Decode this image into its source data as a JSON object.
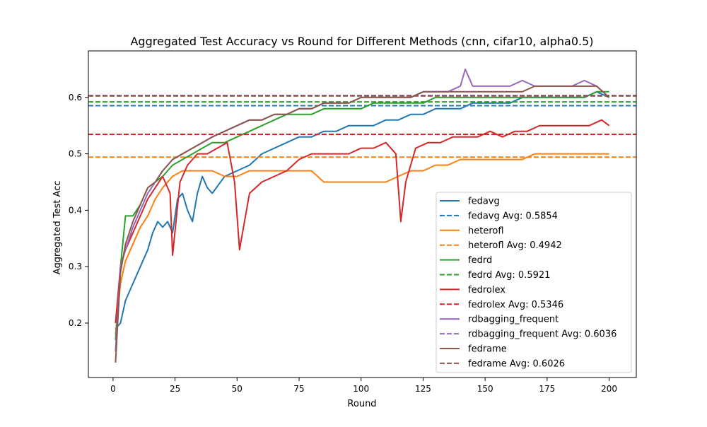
{
  "chart_data": {
    "type": "line",
    "title": "Aggregated Test Accuracy vs Round for Different Methods (cnn, cifar10, alpha0.5)",
    "xlabel": "Round",
    "ylabel": "Aggregated Test Acc",
    "xlim": [
      -9.95,
      210.95
    ],
    "ylim": [
      0.1035,
      0.6825
    ],
    "xticks": [
      0,
      25,
      50,
      75,
      100,
      125,
      150,
      175,
      200
    ],
    "yticks": [
      0.2,
      0.3,
      0.4,
      0.5,
      0.6
    ],
    "xtick_labels": [
      "0",
      "25",
      "50",
      "75",
      "100",
      "125",
      "150",
      "175",
      "200"
    ],
    "ytick_labels": [
      "0.2",
      "0.3",
      "0.4",
      "0.5",
      "0.6"
    ],
    "grid": false,
    "legend_position": "lower right",
    "series": [
      {
        "name": "fedavg",
        "color": "#1f77b4",
        "x": [
          1,
          3,
          5,
          8,
          11,
          14,
          16,
          18,
          20,
          22,
          24,
          26,
          28,
          30,
          32,
          34,
          36,
          38,
          40,
          45,
          50,
          55,
          60,
          65,
          70,
          75,
          80,
          85,
          90,
          95,
          100,
          105,
          110,
          115,
          120,
          125,
          130,
          135,
          140,
          145,
          150,
          155,
          160,
          165,
          170,
          175,
          180,
          185,
          190,
          195,
          200
        ],
        "y": [
          0.19,
          0.2,
          0.24,
          0.27,
          0.3,
          0.33,
          0.36,
          0.38,
          0.37,
          0.38,
          0.36,
          0.42,
          0.43,
          0.4,
          0.38,
          0.43,
          0.46,
          0.44,
          0.43,
          0.46,
          0.47,
          0.48,
          0.5,
          0.51,
          0.52,
          0.53,
          0.53,
          0.54,
          0.54,
          0.55,
          0.55,
          0.55,
          0.56,
          0.56,
          0.57,
          0.57,
          0.58,
          0.58,
          0.58,
          0.59,
          0.59,
          0.59,
          0.59,
          0.6,
          0.6,
          0.6,
          0.6,
          0.6,
          0.6,
          0.61,
          0.6
        ]
      },
      {
        "name": "fedavg Avg: 0.5854",
        "color": "#1f77b4",
        "dashed": true,
        "x": [
          -9.95,
          210.95
        ],
        "y": [
          0.5854,
          0.5854
        ]
      },
      {
        "name": "heterofl",
        "color": "#ff7f0e",
        "x": [
          1,
          3,
          5,
          8,
          11,
          14,
          17,
          20,
          24,
          28,
          32,
          36,
          40,
          45,
          50,
          55,
          60,
          65,
          70,
          75,
          80,
          85,
          90,
          95,
          100,
          105,
          110,
          115,
          120,
          125,
          130,
          135,
          140,
          145,
          150,
          155,
          160,
          165,
          170,
          175,
          180,
          185,
          190,
          195,
          200
        ],
        "y": [
          0.18,
          0.27,
          0.31,
          0.34,
          0.37,
          0.39,
          0.42,
          0.44,
          0.46,
          0.47,
          0.47,
          0.47,
          0.47,
          0.46,
          0.46,
          0.47,
          0.47,
          0.47,
          0.47,
          0.47,
          0.47,
          0.45,
          0.45,
          0.45,
          0.45,
          0.45,
          0.45,
          0.46,
          0.47,
          0.47,
          0.48,
          0.48,
          0.49,
          0.49,
          0.49,
          0.49,
          0.49,
          0.49,
          0.5,
          0.5,
          0.5,
          0.5,
          0.5,
          0.5,
          0.5
        ]
      },
      {
        "name": "heterofl Avg: 0.4942",
        "color": "#ff7f0e",
        "dashed": true,
        "x": [
          -9.95,
          210.95
        ],
        "y": [
          0.4942,
          0.4942
        ]
      },
      {
        "name": "fedrd",
        "color": "#2ca02c",
        "x": [
          1,
          3,
          5,
          8,
          11,
          14,
          17,
          20,
          24,
          28,
          32,
          36,
          40,
          45,
          50,
          55,
          60,
          65,
          70,
          75,
          80,
          85,
          90,
          95,
          100,
          105,
          110,
          115,
          120,
          125,
          130,
          135,
          140,
          145,
          150,
          155,
          160,
          165,
          170,
          175,
          180,
          185,
          190,
          195,
          200
        ],
        "y": [
          0.17,
          0.3,
          0.39,
          0.39,
          0.41,
          0.44,
          0.45,
          0.46,
          0.48,
          0.49,
          0.5,
          0.51,
          0.52,
          0.52,
          0.53,
          0.54,
          0.55,
          0.56,
          0.57,
          0.57,
          0.57,
          0.58,
          0.58,
          0.58,
          0.58,
          0.59,
          0.59,
          0.59,
          0.59,
          0.59,
          0.6,
          0.6,
          0.6,
          0.6,
          0.6,
          0.6,
          0.6,
          0.6,
          0.6,
          0.6,
          0.6,
          0.6,
          0.6,
          0.61,
          0.61
        ]
      },
      {
        "name": "fedrd Avg: 0.5921",
        "color": "#2ca02c",
        "dashed": true,
        "x": [
          -9.95,
          210.95
        ],
        "y": [
          0.5921,
          0.5921
        ]
      },
      {
        "name": "fedrolex",
        "color": "#d62728",
        "x": [
          1,
          3,
          5,
          8,
          11,
          14,
          17,
          20,
          23,
          24,
          27,
          30,
          34,
          38,
          42,
          46,
          49,
          51,
          55,
          60,
          65,
          70,
          75,
          80,
          85,
          90,
          95,
          100,
          105,
          110,
          114,
          116,
          118,
          122,
          127,
          132,
          137,
          142,
          147,
          152,
          157,
          162,
          167,
          172,
          177,
          182,
          187,
          192,
          197,
          200
        ],
        "y": [
          0.2,
          0.3,
          0.33,
          0.36,
          0.39,
          0.42,
          0.44,
          0.46,
          0.43,
          0.32,
          0.45,
          0.48,
          0.5,
          0.5,
          0.51,
          0.52,
          0.45,
          0.33,
          0.43,
          0.45,
          0.46,
          0.47,
          0.49,
          0.5,
          0.5,
          0.5,
          0.5,
          0.51,
          0.51,
          0.52,
          0.5,
          0.38,
          0.45,
          0.51,
          0.52,
          0.52,
          0.53,
          0.53,
          0.53,
          0.54,
          0.53,
          0.54,
          0.54,
          0.55,
          0.55,
          0.55,
          0.55,
          0.55,
          0.56,
          0.55
        ]
      },
      {
        "name": "fedrolex Avg: 0.5346",
        "color": "#d62728",
        "dashed": true,
        "x": [
          -9.95,
          210.95
        ],
        "y": [
          0.5346,
          0.5346
        ]
      },
      {
        "name": "rdbagging_frequent",
        "color": "#9467bd",
        "x": [
          1,
          3,
          5,
          8,
          11,
          14,
          17,
          20,
          24,
          28,
          32,
          36,
          40,
          45,
          50,
          55,
          60,
          65,
          70,
          75,
          80,
          85,
          90,
          95,
          100,
          105,
          110,
          115,
          120,
          125,
          130,
          135,
          140,
          142,
          145,
          150,
          155,
          160,
          165,
          170,
          175,
          180,
          185,
          190,
          195,
          200
        ],
        "y": [
          0.15,
          0.3,
          0.33,
          0.37,
          0.4,
          0.43,
          0.45,
          0.47,
          0.49,
          0.5,
          0.51,
          0.52,
          0.53,
          0.54,
          0.55,
          0.56,
          0.56,
          0.57,
          0.57,
          0.58,
          0.58,
          0.59,
          0.59,
          0.59,
          0.6,
          0.6,
          0.6,
          0.6,
          0.6,
          0.61,
          0.61,
          0.61,
          0.62,
          0.65,
          0.62,
          0.62,
          0.62,
          0.62,
          0.63,
          0.62,
          0.62,
          0.62,
          0.62,
          0.63,
          0.62,
          0.6
        ]
      },
      {
        "name": "rdbagging_frequent Avg: 0.6036",
        "color": "#9467bd",
        "dashed": true,
        "x": [
          -9.95,
          210.95
        ],
        "y": [
          0.6036,
          0.6036
        ]
      },
      {
        "name": "fedrame",
        "color": "#8c564b",
        "x": [
          1,
          3,
          5,
          8,
          11,
          14,
          17,
          20,
          24,
          28,
          32,
          36,
          40,
          45,
          50,
          55,
          60,
          65,
          70,
          75,
          80,
          85,
          90,
          95,
          100,
          105,
          110,
          115,
          120,
          125,
          130,
          135,
          140,
          145,
          150,
          155,
          160,
          165,
          170,
          175,
          180,
          185,
          190,
          195,
          200
        ],
        "y": [
          0.13,
          0.29,
          0.34,
          0.38,
          0.41,
          0.44,
          0.45,
          0.47,
          0.49,
          0.5,
          0.51,
          0.52,
          0.53,
          0.54,
          0.55,
          0.56,
          0.56,
          0.57,
          0.57,
          0.58,
          0.58,
          0.59,
          0.59,
          0.59,
          0.6,
          0.6,
          0.6,
          0.6,
          0.6,
          0.61,
          0.61,
          0.61,
          0.61,
          0.61,
          0.61,
          0.61,
          0.61,
          0.61,
          0.62,
          0.62,
          0.62,
          0.62,
          0.62,
          0.62,
          0.6
        ]
      },
      {
        "name": "fedrame Avg: 0.6026",
        "color": "#8c564b",
        "dashed": true,
        "x": [
          -9.95,
          210.95
        ],
        "y": [
          0.6026,
          0.6026
        ]
      }
    ]
  }
}
